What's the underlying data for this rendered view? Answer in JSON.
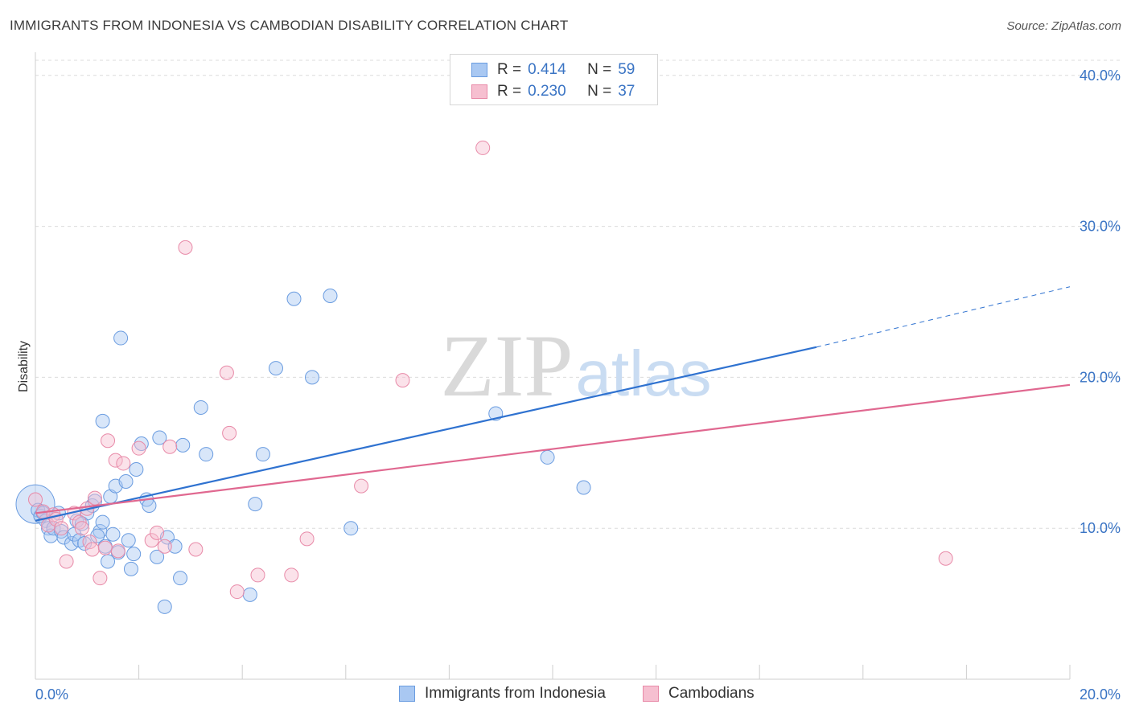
{
  "title": "IMMIGRANTS FROM INDONESIA VS CAMBODIAN DISABILITY CORRELATION CHART",
  "source": "Source: ZipAtlas.com",
  "watermark": {
    "zip": "ZIP",
    "atlas": "atlas"
  },
  "legend": {
    "r_label": "R =",
    "n_label": "N =",
    "entries": [
      {
        "r": "0.414",
        "n": "59"
      },
      {
        "r": "0.230",
        "n": "37"
      }
    ]
  },
  "colors": {
    "blue_fill": "#a9c8f2",
    "blue_stroke": "#6a9ce0",
    "blue_line": "#2f72d0",
    "pink_fill": "#f6bfd0",
    "pink_stroke": "#e88aa8",
    "pink_line": "#e06890",
    "tick_text": "#3a74c4",
    "grid": "#dcdcdc"
  },
  "chart_data": {
    "type": "scatter",
    "title": "IMMIGRANTS FROM INDONESIA VS CAMBODIAN DISABILITY CORRELATION CHART",
    "xlabel": "",
    "ylabel": "Disability",
    "xlim": [
      0,
      20
    ],
    "ylim": [
      0,
      41
    ],
    "x_tick_labels": [
      "0.0%",
      "20.0%"
    ],
    "y_ticks": [
      10,
      20,
      30,
      40
    ],
    "y_tick_labels": [
      "10.0%",
      "20.0%",
      "30.0%",
      "40.0%"
    ],
    "series": [
      {
        "name": "Immigrants from Indonesia",
        "r": 0.414,
        "n": 59,
        "trend": {
          "x0": 0,
          "y0": 10.5,
          "x1": 15.1,
          "y1": 22.0,
          "dash_x1": 20,
          "dash_y1": 26.0
        },
        "points": [
          [
            0.0,
            11.6,
            30
          ],
          [
            0.05,
            11.2,
            14
          ],
          [
            0.1,
            10.8,
            12
          ],
          [
            0.15,
            11.0,
            12
          ],
          [
            0.2,
            10.5,
            12
          ],
          [
            0.25,
            10.0,
            12
          ],
          [
            0.3,
            9.5,
            12
          ],
          [
            0.35,
            10.0,
            12
          ],
          [
            0.45,
            11.0,
            12
          ],
          [
            0.5,
            9.8,
            12
          ],
          [
            0.55,
            9.4,
            12
          ],
          [
            0.7,
            9.0,
            12
          ],
          [
            0.75,
            9.6,
            12
          ],
          [
            0.8,
            10.5,
            12
          ],
          [
            0.85,
            9.2,
            12
          ],
          [
            1.0,
            11.0,
            12
          ],
          [
            0.9,
            10.3,
            12
          ],
          [
            0.95,
            9.0,
            12
          ],
          [
            1.1,
            11.5,
            12
          ],
          [
            1.15,
            11.8,
            12
          ],
          [
            1.25,
            9.8,
            12
          ],
          [
            1.2,
            9.5,
            12
          ],
          [
            1.3,
            10.4,
            12
          ],
          [
            1.35,
            8.8,
            12
          ],
          [
            1.4,
            7.8,
            12
          ],
          [
            1.5,
            9.6,
            12
          ],
          [
            1.45,
            12.1,
            12
          ],
          [
            1.55,
            12.8,
            12
          ],
          [
            1.6,
            8.4,
            12
          ],
          [
            1.75,
            13.1,
            12
          ],
          [
            1.8,
            9.2,
            12
          ],
          [
            1.85,
            7.3,
            12
          ],
          [
            1.9,
            8.3,
            12
          ],
          [
            1.95,
            13.9,
            12
          ],
          [
            2.05,
            15.6,
            12
          ],
          [
            2.15,
            11.9,
            12
          ],
          [
            2.2,
            11.5,
            12
          ],
          [
            2.35,
            8.1,
            12
          ],
          [
            2.4,
            16.0,
            12
          ],
          [
            2.55,
            9.4,
            12
          ],
          [
            2.7,
            8.8,
            12
          ],
          [
            2.8,
            6.7,
            12
          ],
          [
            2.85,
            15.5,
            12
          ],
          [
            2.5,
            4.8,
            12
          ],
          [
            3.2,
            18.0,
            12
          ],
          [
            3.3,
            14.9,
            12
          ],
          [
            4.25,
            11.6,
            12
          ],
          [
            4.15,
            5.6,
            12
          ],
          [
            4.4,
            14.9,
            12
          ],
          [
            4.65,
            20.6,
            12
          ],
          [
            5.0,
            25.2,
            12
          ],
          [
            5.35,
            20.0,
            12
          ],
          [
            5.7,
            25.4,
            12
          ],
          [
            6.1,
            10.0,
            12
          ],
          [
            8.9,
            17.6,
            12
          ],
          [
            9.9,
            14.7,
            12
          ],
          [
            10.6,
            12.7,
            12
          ],
          [
            1.65,
            22.6,
            12
          ],
          [
            1.3,
            17.1,
            12
          ]
        ]
      },
      {
        "name": "Cambodians",
        "r": 0.23,
        "n": 37,
        "trend": {
          "x0": 0,
          "y0": 11.0,
          "x1": 20,
          "y1": 19.5
        },
        "points": [
          [
            0.0,
            11.9,
            14
          ],
          [
            0.15,
            11.1,
            12
          ],
          [
            0.25,
            10.2,
            12
          ],
          [
            0.35,
            10.9,
            12
          ],
          [
            0.4,
            10.6,
            12
          ],
          [
            0.5,
            10.0,
            12
          ],
          [
            0.6,
            7.8,
            12
          ],
          [
            0.75,
            11.0,
            12
          ],
          [
            0.85,
            10.4,
            12
          ],
          [
            0.9,
            10.0,
            12
          ],
          [
            1.0,
            11.3,
            12
          ],
          [
            1.05,
            9.1,
            12
          ],
          [
            1.1,
            8.6,
            12
          ],
          [
            1.15,
            12.0,
            12
          ],
          [
            1.25,
            6.7,
            12
          ],
          [
            1.35,
            8.7,
            12
          ],
          [
            1.4,
            15.8,
            12
          ],
          [
            1.55,
            14.5,
            12
          ],
          [
            1.6,
            8.5,
            12
          ],
          [
            1.7,
            14.3,
            12
          ],
          [
            2.0,
            15.3,
            12
          ],
          [
            2.25,
            9.2,
            12
          ],
          [
            2.35,
            9.7,
            12
          ],
          [
            2.5,
            8.8,
            12
          ],
          [
            2.6,
            15.4,
            12
          ],
          [
            2.9,
            28.6,
            12
          ],
          [
            3.1,
            8.6,
            12
          ],
          [
            3.7,
            20.3,
            12
          ],
          [
            3.75,
            16.3,
            12
          ],
          [
            3.9,
            5.8,
            12
          ],
          [
            4.3,
            6.9,
            12
          ],
          [
            4.95,
            6.9,
            12
          ],
          [
            5.25,
            9.3,
            12
          ],
          [
            6.3,
            12.8,
            12
          ],
          [
            7.1,
            19.8,
            12
          ],
          [
            8.65,
            35.2,
            12
          ],
          [
            17.6,
            8.0,
            12
          ]
        ]
      }
    ]
  },
  "bottom_legend": [
    "Immigrants from Indonesia",
    "Cambodians"
  ]
}
